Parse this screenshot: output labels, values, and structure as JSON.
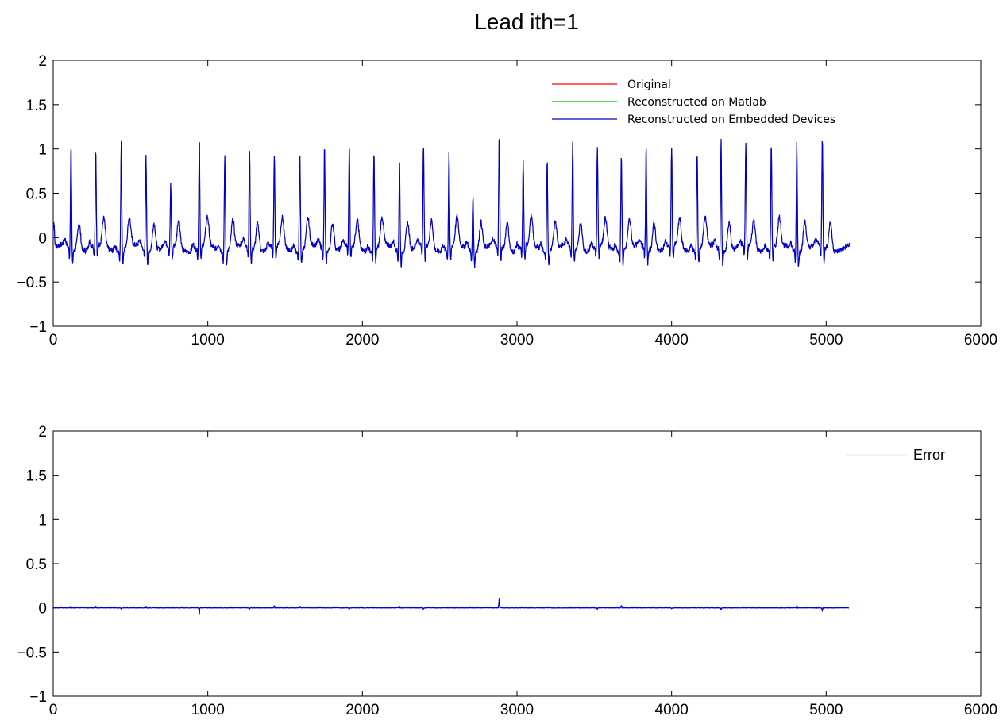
{
  "chart_data": [
    {
      "type": "line",
      "title": "Lead ith=1",
      "xlim": [
        0,
        6000
      ],
      "ylim": [
        -1,
        2
      ],
      "xticks": [
        0,
        1000,
        2000,
        3000,
        4000,
        5000,
        6000
      ],
      "yticks": [
        -1,
        -0.5,
        0,
        0.5,
        1,
        1.5,
        2
      ],
      "xtick_labels": [
        "0",
        "1000",
        "2000",
        "3000",
        "4000",
        "5000",
        "6000"
      ],
      "ytick_labels": [
        "−1",
        "−0.5",
        "0",
        "0.5",
        "1",
        "1.5",
        "2"
      ],
      "grid": false,
      "legend_position": "top-right",
      "series": [
        {
          "name": "Original",
          "color": "#ff0000"
        },
        {
          "name": "Reconstructed on Matlab",
          "color": "#00c800"
        },
        {
          "name": "Reconstructed on Embedded Devices",
          "color": "#0000cc"
        }
      ],
      "signal": {
        "x_end": 5150,
        "baseline": -0.12,
        "r_peaks": [
          [
            115,
            1.04
          ],
          [
            275,
            0.98
          ],
          [
            440,
            1.1
          ],
          [
            600,
            0.93
          ],
          [
            760,
            0.55
          ],
          [
            945,
            1.12
          ],
          [
            1110,
            0.97
          ],
          [
            1270,
            0.99
          ],
          [
            1430,
            0.9
          ],
          [
            1595,
            1.02
          ],
          [
            1755,
            1.04
          ],
          [
            1915,
            0.99
          ],
          [
            2075,
            0.98
          ],
          [
            2240,
            0.87
          ],
          [
            2395,
            1.03
          ],
          [
            2560,
            0.97
          ],
          [
            2715,
            0.5
          ],
          [
            2885,
            1.14
          ],
          [
            3040,
            0.83
          ],
          [
            3195,
            0.93
          ],
          [
            3360,
            1.07
          ],
          [
            3520,
            0.98
          ],
          [
            3675,
            0.97
          ],
          [
            3835,
            1.04
          ],
          [
            4000,
            1.0
          ],
          [
            4165,
            1.0
          ],
          [
            4320,
            1.11
          ],
          [
            4480,
            1.03
          ],
          [
            4645,
            1.08
          ],
          [
            4810,
            1.11
          ],
          [
            4975,
            1.11
          ]
        ]
      }
    },
    {
      "type": "line",
      "xlim": [
        0,
        6000
      ],
      "ylim": [
        -1,
        2
      ],
      "xticks": [
        0,
        1000,
        2000,
        3000,
        4000,
        5000,
        6000
      ],
      "yticks": [
        -1,
        -0.5,
        0,
        0.5,
        1,
        1.5,
        2
      ],
      "xtick_labels": [
        "0",
        "1000",
        "2000",
        "3000",
        "4000",
        "5000",
        "6000"
      ],
      "ytick_labels": [
        "−1",
        "−0.5",
        "0",
        "0.5",
        "1",
        "1.5",
        "2"
      ],
      "grid": false,
      "legend_position": "top-right",
      "series": [
        {
          "name": "Error",
          "color": "#0000cc"
        }
      ],
      "signal": {
        "x_end": 5150,
        "spikes": [
          [
            115,
            0.01
          ],
          [
            275,
            0.01
          ],
          [
            440,
            -0.02
          ],
          [
            600,
            0.01
          ],
          [
            945,
            -0.08
          ],
          [
            1270,
            -0.02
          ],
          [
            1430,
            0.02
          ],
          [
            1595,
            0.01
          ],
          [
            1915,
            -0.02
          ],
          [
            2240,
            0.01
          ],
          [
            2395,
            -0.02
          ],
          [
            2885,
            0.14
          ],
          [
            3520,
            -0.02
          ],
          [
            3675,
            0.03
          ],
          [
            4000,
            -0.01
          ],
          [
            4320,
            -0.03
          ],
          [
            4810,
            0.02
          ],
          [
            4975,
            -0.04
          ]
        ]
      }
    }
  ]
}
